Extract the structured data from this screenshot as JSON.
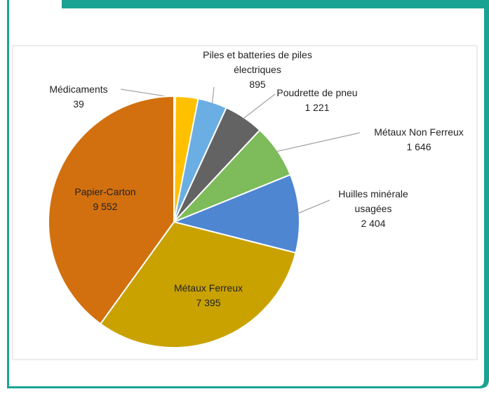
{
  "chart_data": {
    "type": "pie",
    "categories": [
      "Médicaments",
      null,
      "Piles et batteries de piles électriques",
      "Poudrette de pneu",
      "Métaux Non Ferreux",
      "Huilles minérale usagées",
      "Métaux Ferreux",
      "Papier-Carton"
    ],
    "values": [
      39,
      700,
      895,
      1221,
      1646,
      2404,
      7395,
      9552
    ],
    "value_labels": [
      "39",
      null,
      "895",
      "1 221",
      "1 646",
      "2 404",
      "7 395",
      "9 552"
    ],
    "colors": [
      "#a5a5a5",
      "#ffc000",
      "#6aaee3",
      "#636363",
      "#7dbb5b",
      "#4f86d2",
      "#c9a200",
      "#d2700f"
    ]
  }
}
